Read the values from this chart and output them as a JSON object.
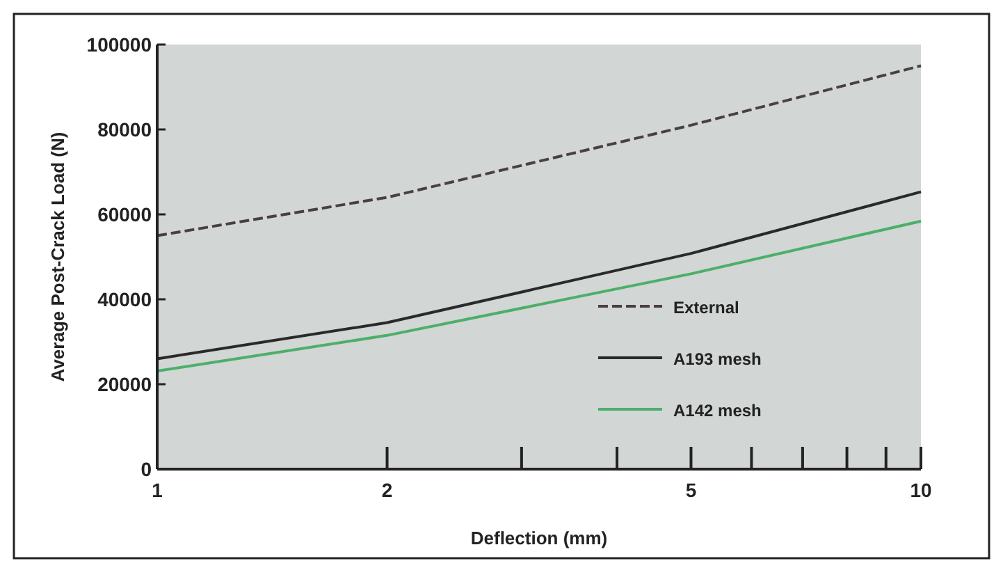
{
  "chart_data": {
    "type": "line",
    "xlabel": "Deflection (mm)",
    "ylabel": "Average Post-Crack Load (N)",
    "log": "x",
    "xlim": [
      1,
      10
    ],
    "xticks": [
      1,
      2,
      {
        "value": 3,
        "label": null
      },
      {
        "value": 4,
        "label": null
      },
      5,
      {
        "value": 6,
        "label": null
      },
      {
        "value": 7,
        "label": null
      },
      {
        "value": 8,
        "label": null
      },
      {
        "value": 9,
        "label": null
      },
      10
    ],
    "ylim": [
      0,
      100000
    ],
    "yticks": [
      0,
      20000,
      40000,
      60000,
      80000,
      100000
    ],
    "x": [
      1,
      2,
      5,
      10
    ],
    "series": [
      {
        "name": "External",
        "color": "#4a4040",
        "line_style": "dashed",
        "values": [
          55000,
          64000,
          81000,
          95000
        ]
      },
      {
        "name": "A193 mesh",
        "color": "#2a2a2a",
        "line_style": "solid",
        "values": [
          26000,
          34500,
          50800,
          65300
        ]
      },
      {
        "name": "A142 mesh",
        "color": "#4caf6a",
        "line_style": "solid",
        "values": [
          23100,
          31500,
          46000,
          58400
        ]
      }
    ],
    "legend": "bottom right",
    "grid": false,
    "marker": "none"
  }
}
